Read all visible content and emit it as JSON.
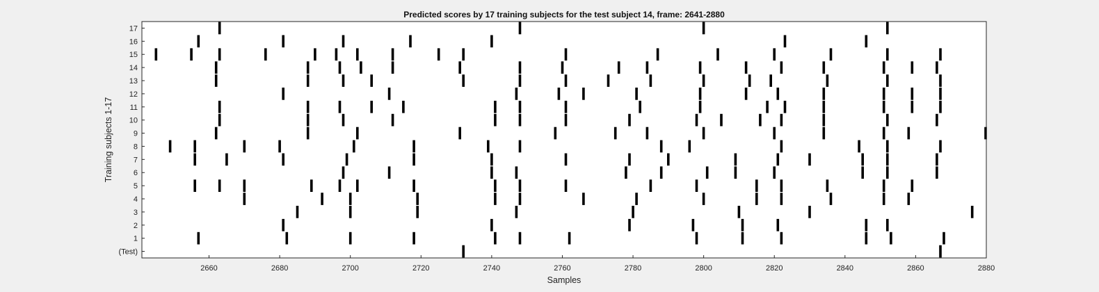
{
  "chart_data": {
    "type": "raster",
    "title": "Predicted scores by 17 training subjects for the test subject 14, frame: 2641-2880",
    "xlabel": "Samples",
    "ylabel": "Training subjects 1-17",
    "xlim": [
      2641,
      2880
    ],
    "x_ticks": [
      2660,
      2680,
      2700,
      2720,
      2740,
      2760,
      2780,
      2800,
      2820,
      2840,
      2860,
      2880
    ],
    "y_tick_labels": [
      "(Test)",
      "1",
      "2",
      "3",
      "4",
      "5",
      "6",
      "7",
      "8",
      "9",
      "10",
      "11",
      "12",
      "13",
      "14",
      "15",
      "16",
      "17"
    ],
    "grid": false,
    "legend": "none",
    "colors": {
      "background": "#f0f0f0",
      "plot_area": "#ffffff",
      "marker": "#000000",
      "axis": "#262626"
    },
    "series": [
      {
        "row": "(Test)",
        "x": [
          2732,
          2867
        ]
      },
      {
        "row": "1",
        "x": [
          2657,
          2682,
          2700,
          2718,
          2741,
          2748,
          2762,
          2798,
          2811,
          2822,
          2846,
          2853,
          2868
        ]
      },
      {
        "row": "2",
        "x": [
          2681,
          2740,
          2779,
          2797,
          2811,
          2821,
          2846,
          2852
        ]
      },
      {
        "row": "3",
        "x": [
          2685,
          2700,
          2719,
          2747,
          2780,
          2810,
          2830,
          2876
        ]
      },
      {
        "row": "4",
        "x": [
          2670,
          2692,
          2700,
          2719,
          2741,
          2748,
          2766,
          2781,
          2800,
          2815,
          2822,
          2836,
          2851,
          2858
        ]
      },
      {
        "row": "5",
        "x": [
          2656,
          2663,
          2670,
          2689,
          2697,
          2702,
          2718,
          2741,
          2748,
          2761,
          2785,
          2798,
          2815,
          2822,
          2835,
          2851,
          2859
        ]
      },
      {
        "row": "6",
        "x": [
          2698,
          2711,
          2740,
          2747,
          2778,
          2788,
          2801,
          2809,
          2820,
          2845,
          2852,
          2866
        ]
      },
      {
        "row": "7",
        "x": [
          2656,
          2665,
          2681,
          2699,
          2718,
          2740,
          2761,
          2779,
          2790,
          2809,
          2821,
          2830,
          2845,
          2852,
          2866
        ]
      },
      {
        "row": "8",
        "x": [
          2649,
          2656,
          2670,
          2680,
          2701,
          2718,
          2739,
          2748,
          2788,
          2796,
          2822,
          2844,
          2852,
          2867
        ]
      },
      {
        "row": "9",
        "x": [
          2662,
          2688,
          2702,
          2731,
          2758,
          2775,
          2784,
          2800,
          2820,
          2834,
          2851,
          2858,
          2880
        ]
      },
      {
        "row": "10",
        "x": [
          2663,
          2688,
          2698,
          2712,
          2741,
          2748,
          2761,
          2779,
          2798,
          2805,
          2816,
          2822,
          2834,
          2852,
          2866
        ]
      },
      {
        "row": "11",
        "x": [
          2663,
          2688,
          2697,
          2706,
          2715,
          2741,
          2748,
          2761,
          2782,
          2799,
          2818,
          2823,
          2834,
          2851,
          2859,
          2867
        ]
      },
      {
        "row": "12",
        "x": [
          2681,
          2711,
          2747,
          2759,
          2766,
          2781,
          2799,
          2812,
          2821,
          2834,
          2851,
          2859,
          2867
        ]
      },
      {
        "row": "13",
        "x": [
          2662,
          2688,
          2698,
          2706,
          2732,
          2748,
          2761,
          2773,
          2785,
          2800,
          2813,
          2819,
          2835,
          2852,
          2867
        ]
      },
      {
        "row": "14",
        "x": [
          2662,
          2688,
          2697,
          2703,
          2712,
          2731,
          2748,
          2760,
          2776,
          2784,
          2799,
          2812,
          2822,
          2834,
          2851,
          2859,
          2866
        ]
      },
      {
        "row": "15",
        "x": [
          2645,
          2655,
          2663,
          2676,
          2690,
          2696,
          2702,
          2712,
          2725,
          2732,
          2761,
          2787,
          2804,
          2820,
          2836,
          2852,
          2867
        ]
      },
      {
        "row": "16",
        "x": [
          2657,
          2681,
          2698,
          2717,
          2740,
          2823,
          2846
        ]
      },
      {
        "row": "17",
        "x": [
          2663,
          2748,
          2800,
          2852
        ]
      }
    ]
  }
}
